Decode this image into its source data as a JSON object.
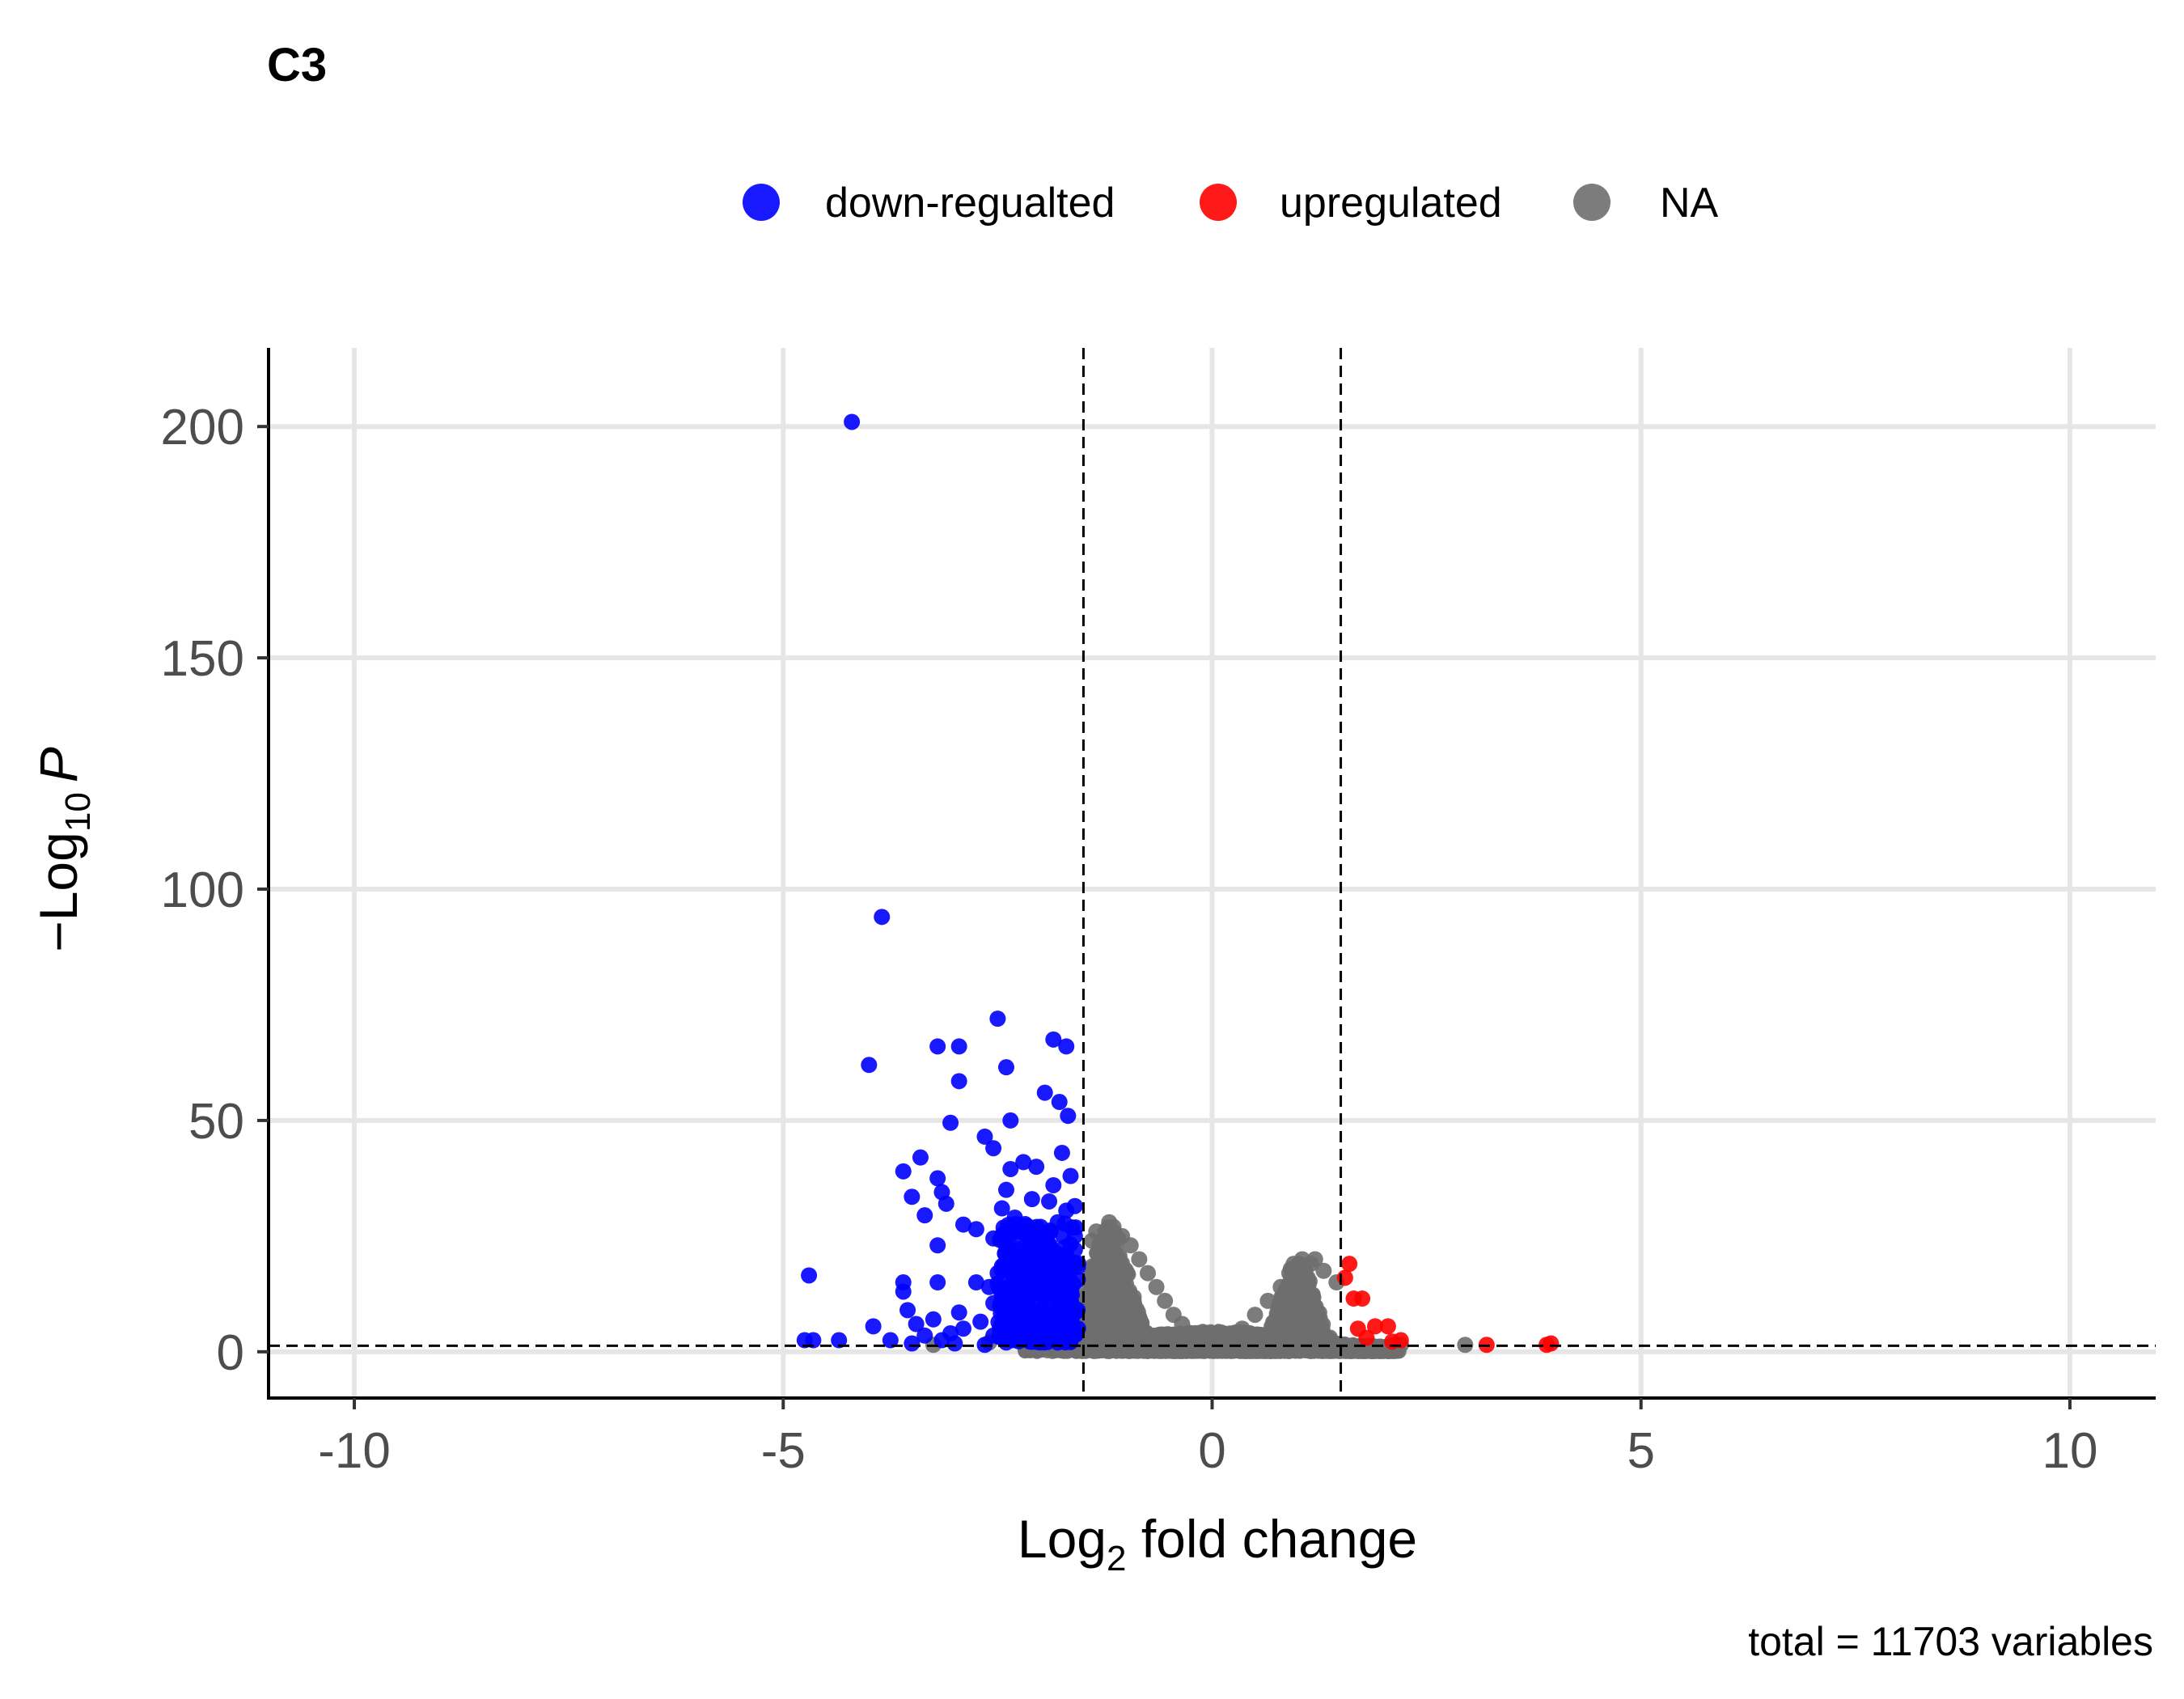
{
  "chart_data": {
    "type": "scatter",
    "title": "C3",
    "caption": "total = 11703 variables",
    "xlabel": {
      "main": "Log",
      "sub": "2",
      "rest": " fold change"
    },
    "ylabel": {
      "main": "−Log",
      "sub": "10",
      "rest": "P"
    },
    "xlim": [
      -11,
      11
    ],
    "ylim": [
      -10,
      217
    ],
    "xticks": [
      -10,
      -5,
      0,
      5,
      10
    ],
    "xtick_labels": [
      "-10",
      "-5",
      "0",
      "5",
      "10"
    ],
    "yticks": [
      0,
      50,
      100,
      150,
      200
    ],
    "ytick_labels": [
      "0",
      "50",
      "100",
      "150",
      "200"
    ],
    "grid": true,
    "legend_position": "top",
    "cutoffs": {
      "x": [
        -1.5,
        1.5
      ],
      "y": 1.3
    },
    "colors": {
      "down": "#0000ff",
      "up": "#ff0000",
      "na": "#6e6e6e",
      "grid": "#e6e6e6"
    },
    "series": [
      {
        "name": "down-regualted",
        "color": "#0000ff",
        "points": [
          [
            -4.2,
            201
          ],
          [
            -3.85,
            94
          ],
          [
            -4.0,
            62
          ],
          [
            -3.2,
            66
          ],
          [
            -2.95,
            66
          ],
          [
            -2.5,
            72
          ],
          [
            -1.85,
            67.5
          ],
          [
            -1.7,
            66
          ],
          [
            -2.4,
            61.5
          ],
          [
            -2.95,
            58.5
          ],
          [
            -1.95,
            56
          ],
          [
            -1.78,
            54
          ],
          [
            -1.68,
            51
          ],
          [
            -2.35,
            50
          ],
          [
            -3.05,
            49.5
          ],
          [
            -2.65,
            46.5
          ],
          [
            -2.55,
            44
          ],
          [
            -1.75,
            43
          ],
          [
            -3.4,
            42
          ],
          [
            -2.2,
            41
          ],
          [
            -2.05,
            40
          ],
          [
            -2.35,
            39.5
          ],
          [
            -3.6,
            39
          ],
          [
            -1.65,
            38
          ],
          [
            -3.2,
            37.5
          ],
          [
            -1.85,
            36
          ],
          [
            -2.4,
            35
          ],
          [
            -3.15,
            34.5
          ],
          [
            -3.5,
            33.5
          ],
          [
            -2.1,
            33
          ],
          [
            -1.9,
            32.5
          ],
          [
            -3.1,
            32
          ],
          [
            -1.6,
            31.5
          ],
          [
            -2.45,
            31
          ],
          [
            -1.7,
            30.5
          ],
          [
            -3.35,
            29.5
          ],
          [
            -2.3,
            29
          ],
          [
            -1.8,
            28
          ],
          [
            -2.9,
            27.5
          ],
          [
            -2.0,
            27
          ],
          [
            -2.75,
            26.5
          ],
          [
            -2.15,
            25.5
          ],
          [
            -1.6,
            25
          ],
          [
            -2.55,
            24.5
          ],
          [
            -1.95,
            24
          ],
          [
            -3.2,
            23
          ],
          [
            -2.35,
            22
          ],
          [
            -1.7,
            21
          ],
          [
            -2.05,
            20.5
          ],
          [
            -2.25,
            19.5
          ],
          [
            -1.85,
            19
          ],
          [
            -2.45,
            18.5
          ],
          [
            -1.65,
            18
          ],
          [
            -2.1,
            17.5
          ],
          [
            -2.5,
            17
          ],
          [
            -1.95,
            16.5
          ],
          [
            -2.3,
            16
          ],
          [
            -1.75,
            15.5
          ],
          [
            -2.0,
            15
          ],
          [
            -3.6,
            15
          ],
          [
            -3.2,
            15
          ],
          [
            -2.75,
            15
          ],
          [
            -2.15,
            14.5
          ],
          [
            -2.6,
            14
          ],
          [
            -1.8,
            13.5
          ],
          [
            -2.4,
            13
          ],
          [
            -2.05,
            12.5
          ],
          [
            -1.65,
            12
          ],
          [
            -3.6,
            13
          ],
          [
            -2.25,
            11.5
          ],
          [
            -1.9,
            11
          ],
          [
            -2.55,
            10.5
          ],
          [
            -2.15,
            10
          ],
          [
            -1.75,
            9.5
          ],
          [
            -3.55,
            9
          ],
          [
            -2.95,
            8.5
          ],
          [
            -2.35,
            8
          ],
          [
            -2.0,
            7.5
          ],
          [
            -1.7,
            7
          ],
          [
            -3.25,
            7
          ],
          [
            -2.7,
            6.5
          ],
          [
            -2.45,
            6
          ],
          [
            -3.45,
            6
          ],
          [
            -1.85,
            5.5
          ],
          [
            -3.95,
            5.5
          ],
          [
            -2.9,
            5
          ],
          [
            -2.2,
            4.5
          ],
          [
            -1.6,
            4
          ],
          [
            -3.05,
            4
          ],
          [
            -2.55,
            3.5
          ],
          [
            -3.35,
            3.5
          ],
          [
            -2.05,
            3
          ],
          [
            -3.75,
            2.5
          ],
          [
            -3.15,
            2.5
          ],
          [
            -2.4,
            2
          ],
          [
            -1.8,
            2
          ],
          [
            -4.7,
            16.5
          ],
          [
            -4.75,
            2.5
          ],
          [
            -4.65,
            2.5
          ],
          [
            -4.35,
            2.5
          ],
          [
            -3.5,
            1.8
          ],
          [
            -3.0,
            1.8
          ],
          [
            -2.65,
            1.5
          ]
        ]
      },
      {
        "name": "upregulated",
        "color": "#ff0000",
        "points": [
          [
            1.6,
            19
          ],
          [
            1.55,
            16
          ],
          [
            1.65,
            11.5
          ],
          [
            1.75,
            11.5
          ],
          [
            1.7,
            5
          ],
          [
            1.9,
            5.5
          ],
          [
            2.05,
            5.5
          ],
          [
            2.1,
            2.2
          ],
          [
            3.2,
            1.5
          ],
          [
            3.95,
            1.8
          ],
          [
            3.9,
            1.5
          ],
          [
            1.8,
            3
          ],
          [
            2.2,
            2.5
          ]
        ]
      },
      {
        "name": "NA",
        "color": "#6e6e6e",
        "generated": "dense cloud around two ridges at x=-1.2 and x=1.0",
        "points": [
          [
            -1.2,
            28
          ],
          [
            -1.15,
            27
          ],
          [
            -1.35,
            26
          ],
          [
            -1.05,
            25
          ],
          [
            -0.95,
            23
          ],
          [
            -1.4,
            24
          ],
          [
            -0.85,
            20
          ],
          [
            -0.75,
            17
          ],
          [
            -0.65,
            14
          ],
          [
            -0.55,
            11
          ],
          [
            -0.45,
            8
          ],
          [
            -0.35,
            6
          ],
          [
            -0.25,
            4
          ],
          [
            0.2,
            3
          ],
          [
            0.35,
            5
          ],
          [
            0.5,
            8
          ],
          [
            0.65,
            11
          ],
          [
            0.8,
            14
          ],
          [
            0.9,
            17
          ],
          [
            1.05,
            20
          ],
          [
            1.15,
            19
          ],
          [
            1.3,
            17.5
          ],
          [
            1.45,
            15
          ],
          [
            0.95,
            19
          ],
          [
            1.2,
            20
          ],
          [
            2.95,
            1.5
          ],
          [
            2.2,
            1.5
          ],
          [
            -3.25,
            1.5
          ],
          [
            -2.6,
            2
          ]
        ]
      }
    ],
    "legend_marker": "●"
  }
}
